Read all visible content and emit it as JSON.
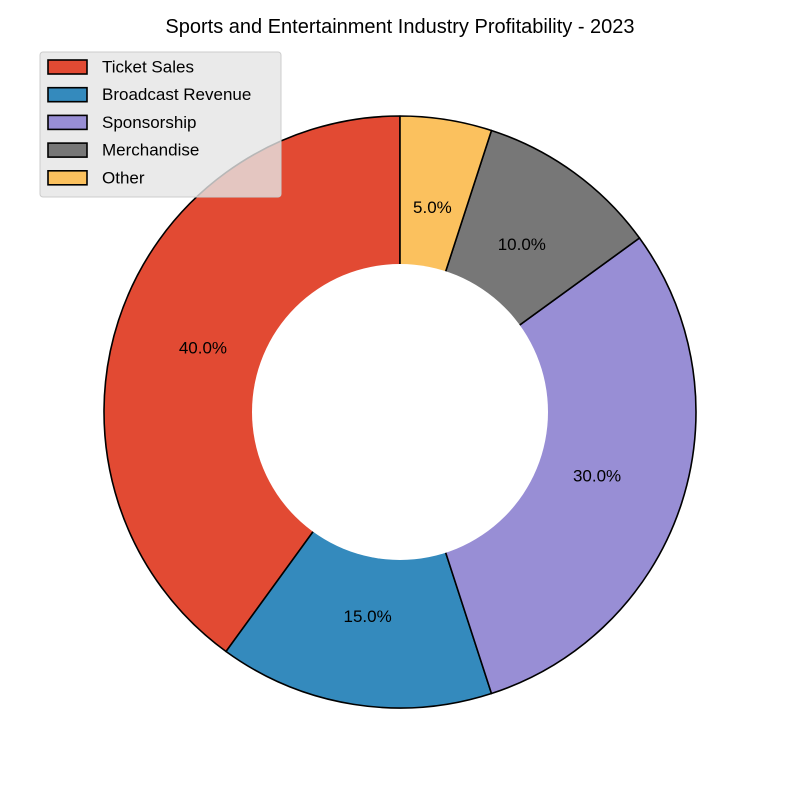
{
  "chart_data": {
    "type": "pie",
    "donut": true,
    "title": "Sports and Entertainment Industry Profitability - 2023",
    "legend_position": "top-left",
    "slices": [
      {
        "name": "Ticket Sales",
        "value": 40.0,
        "label": "40.0%",
        "color": "#e24a33"
      },
      {
        "name": "Broadcast Revenue",
        "value": 15.0,
        "label": "15.0%",
        "color": "#348abd"
      },
      {
        "name": "Sponsorship",
        "value": 30.0,
        "label": "30.0%",
        "color": "#988ed5"
      },
      {
        "name": "Merchandise",
        "value": 10.0,
        "label": "10.0%",
        "color": "#777777"
      },
      {
        "name": "Other",
        "value": 5.0,
        "label": "5.0%",
        "color": "#fbc15e"
      }
    ]
  }
}
